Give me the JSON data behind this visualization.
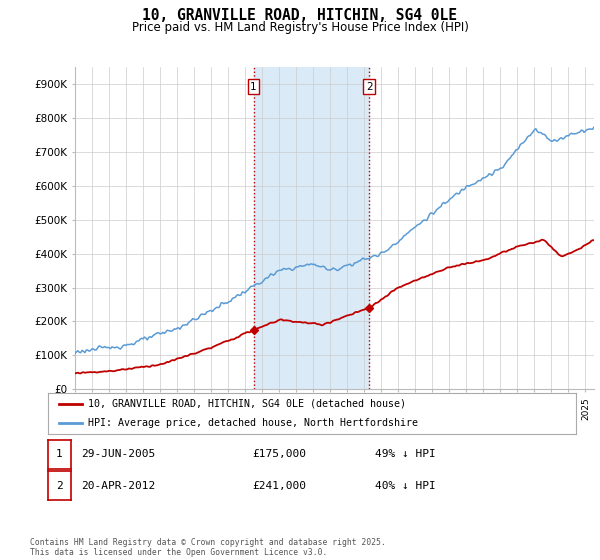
{
  "title": "10, GRANVILLE ROAD, HITCHIN, SG4 0LE",
  "subtitle": "Price paid vs. HM Land Registry's House Price Index (HPI)",
  "ylim": [
    0,
    950000
  ],
  "yticks": [
    0,
    100000,
    200000,
    300000,
    400000,
    500000,
    600000,
    700000,
    800000,
    900000
  ],
  "ytick_labels": [
    "£0",
    "£100K",
    "£200K",
    "£300K",
    "£400K",
    "£500K",
    "£600K",
    "£700K",
    "£800K",
    "£900K"
  ],
  "xlim_start": 1995.0,
  "xlim_end": 2025.5,
  "transaction1_date": 2005.49,
  "transaction1_price": 175000,
  "transaction1_label": "1",
  "transaction2_date": 2012.3,
  "transaction2_price": 241000,
  "transaction2_label": "2",
  "hpi_color": "#5b9bd5",
  "hpi_fill_alpha": 0.18,
  "price_color": "#c00000",
  "vline_color": "#c00000",
  "vline_style": ":",
  "highlight_fill": "#daeaf7",
  "legend_label_price": "10, GRANVILLE ROAD, HITCHIN, SG4 0LE (detached house)",
  "legend_label_hpi": "HPI: Average price, detached house, North Hertfordshire",
  "table_row1": [
    "1",
    "29-JUN-2005",
    "£175,000",
    "49% ↓ HPI"
  ],
  "table_row2": [
    "2",
    "20-APR-2012",
    "£241,000",
    "40% ↓ HPI"
  ],
  "footer": "Contains HM Land Registry data © Crown copyright and database right 2025.\nThis data is licensed under the Open Government Licence v3.0.",
  "background_color": "#ffffff"
}
